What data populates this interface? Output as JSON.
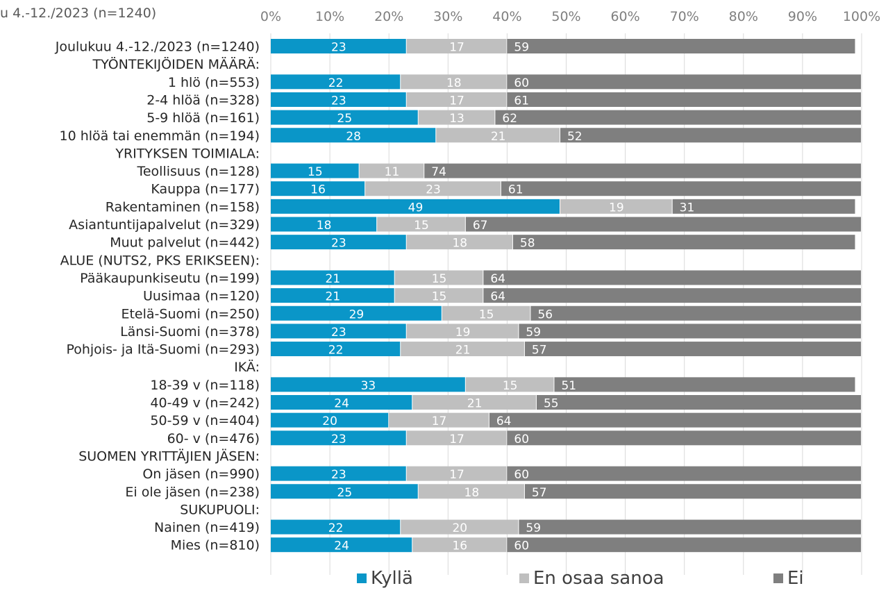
{
  "chart_data": {
    "type": "bar",
    "orientation": "horizontal",
    "stacked": "percent",
    "title": "u 4.-12./2023 (n=1240)",
    "xlim": [
      0,
      100
    ],
    "x_ticks": [
      "0%",
      "10%",
      "20%",
      "30%",
      "40%",
      "50%",
      "60%",
      "70%",
      "80%",
      "90%",
      "100%"
    ],
    "grid": "vertical",
    "legend_position": "bottom",
    "colors": {
      "Kyllä": "#0a96c8",
      "En osaa sanoa": "#bfbfbf",
      "Ei": "#7f7f7f"
    },
    "categories": [
      "Joulukuu 4.-12./2023 (n=1240)",
      "TYÖNTEKIJÖIDEN MÄÄRÄ:",
      "1 hlö (n=553)",
      "2-4 hlöä (n=328)",
      "5-9 hlöä (n=161)",
      "10 hlöä tai enemmän (n=194)",
      "YRITYKSEN TOIMIALA:",
      "Teollisuus (n=128)",
      "Kauppa (n=177)",
      "Rakentaminen (n=158)",
      "Asiantuntijapalvelut (n=329)",
      "Muut palvelut (n=442)",
      "ALUE (NUTS2, PKS ERIKSEEN):",
      "Pääkaupunkiseutu (n=199)",
      "Uusimaa (n=120)",
      "Etelä-Suomi (n=250)",
      "Länsi-Suomi (n=378)",
      "Pohjois- ja Itä-Suomi (n=293)",
      "IKÄ:",
      "18-39 v (n=118)",
      "40-49 v (n=242)",
      "50-59 v (n=404)",
      "60- v (n=476)",
      "SUOMEN YRITTÄJIEN JÄSEN:",
      "On jäsen (n=990)",
      "Ei ole jäsen (n=238)",
      "SUKUPUOLI:",
      "Nainen (n=419)",
      "Mies (n=810)"
    ],
    "series": [
      {
        "name": "Kyllä",
        "values": [
          23,
          null,
          22,
          23,
          25,
          28,
          null,
          15,
          16,
          49,
          18,
          23,
          null,
          21,
          21,
          29,
          23,
          22,
          null,
          33,
          24,
          20,
          23,
          null,
          23,
          25,
          null,
          22,
          24
        ]
      },
      {
        "name": "En osaa sanoa",
        "values": [
          17,
          null,
          18,
          17,
          13,
          21,
          null,
          11,
          23,
          19,
          15,
          18,
          null,
          15,
          15,
          15,
          19,
          21,
          null,
          15,
          21,
          17,
          17,
          null,
          17,
          18,
          null,
          20,
          16
        ]
      },
      {
        "name": "Ei",
        "values": [
          59,
          null,
          60,
          61,
          62,
          52,
          null,
          74,
          61,
          31,
          67,
          58,
          null,
          64,
          64,
          56,
          59,
          57,
          null,
          51,
          55,
          64,
          60,
          null,
          60,
          57,
          null,
          59,
          60
        ]
      }
    ]
  }
}
